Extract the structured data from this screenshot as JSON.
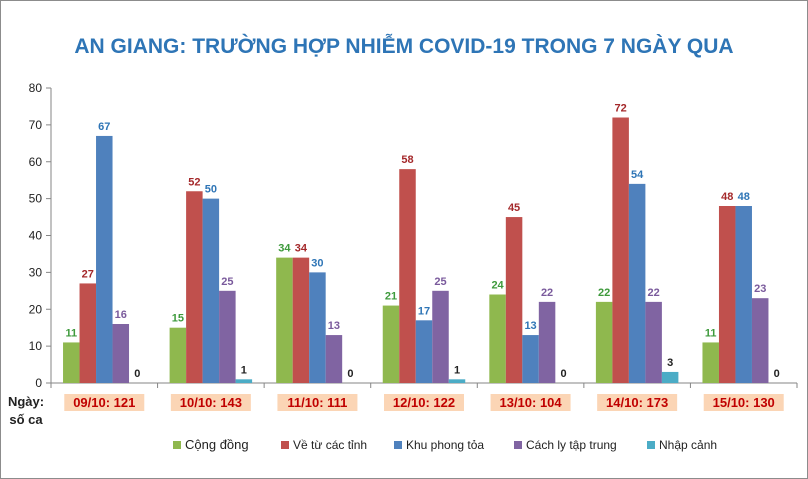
{
  "chart_data": {
    "type": "bar",
    "title": "AN GIANG: TRƯỜNG HỢP NHIỄM COVID-19 TRONG 7 NGÀY QUA",
    "xlabel": "Ngày:\nsố ca",
    "ylabel": "",
    "ylim": [
      0,
      80
    ],
    "yticks": [
      0,
      10,
      20,
      30,
      40,
      50,
      60,
      70,
      80
    ],
    "grid": false,
    "legend_position": "bottom",
    "categories": [
      "09/10: 121",
      "10/10: 143",
      "11/10: 111",
      "12/10: 122",
      "13/10: 104",
      "14/10: 173",
      "15/10: 130"
    ],
    "series": [
      {
        "name": "Cộng đồng",
        "color": "#8fb84e",
        "label_color": "#3e9a3c",
        "values": [
          11,
          15,
          34,
          21,
          24,
          22,
          11
        ]
      },
      {
        "name": "Về từ các tỉnh",
        "color": "#c0504d",
        "label_color": "#a4282a",
        "values": [
          27,
          52,
          34,
          58,
          45,
          72,
          48
        ]
      },
      {
        "name": "Khu phong tỏa",
        "color": "#4f81bd",
        "label_color": "#2e75b6",
        "values": [
          67,
          50,
          30,
          17,
          13,
          54,
          48
        ]
      },
      {
        "name": "Cách ly tập trung",
        "color": "#8064a2",
        "label_color": "#7a5a9c",
        "values": [
          16,
          25,
          13,
          25,
          22,
          22,
          23
        ]
      },
      {
        "name": "Nhập cảnh",
        "color": "#4bacc6",
        "label_color": "#222222",
        "values": [
          0,
          1,
          0,
          1,
          0,
          3,
          0
        ]
      }
    ],
    "colors": {
      "title": "#2e75b6",
      "category_label": "#c00000",
      "category_label_bg": "#fbd5b5",
      "axis": "#868686",
      "tick_label": "#222222"
    }
  }
}
